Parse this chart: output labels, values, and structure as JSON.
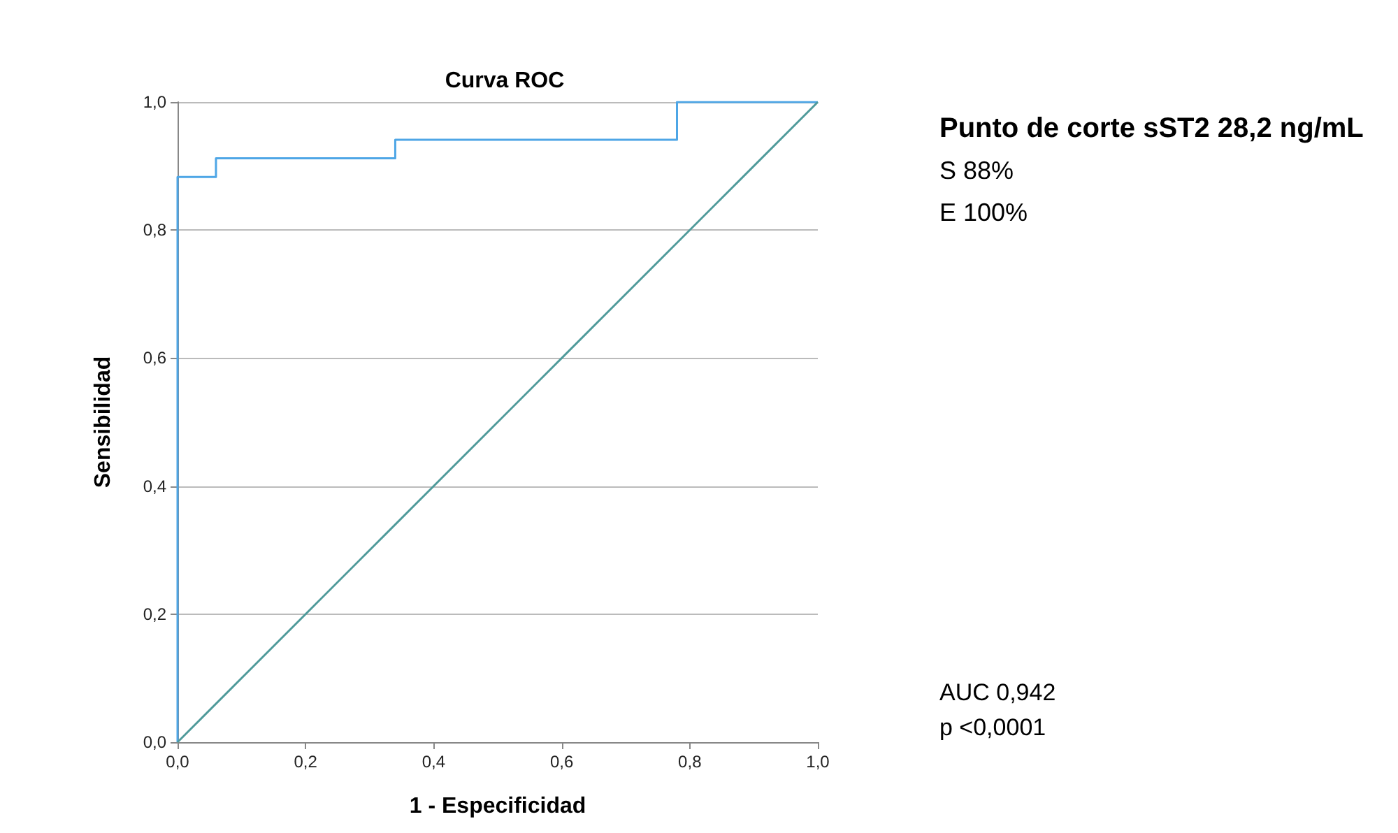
{
  "chart_data": {
    "type": "line",
    "title": "Curva ROC",
    "xlabel": "1 - Especificidad",
    "ylabel": "Sensibilidad",
    "series": [
      {
        "type": "step",
        "color": "#4ea6e6",
        "x": [
          0,
          0,
          0.06,
          0.34,
          0.78,
          1
        ],
        "values": [
          0,
          0.883,
          0.912,
          0.941,
          1,
          1
        ]
      },
      {
        "color": "#4f9a9a",
        "x": [
          0,
          1
        ],
        "values": [
          0,
          1
        ]
      }
    ],
    "xlim": [
      0,
      1
    ],
    "ylim": [
      0,
      1
    ],
    "xticks": [
      {
        "value": 0,
        "label": "0,0"
      },
      {
        "value": 0.2,
        "label": "0,2"
      },
      {
        "value": 0.4,
        "label": "0,4"
      },
      {
        "value": 0.6,
        "label": "0,6"
      },
      {
        "value": 0.8,
        "label": "0,8"
      },
      {
        "value": 1,
        "label": "1,0"
      }
    ],
    "yticks": [
      {
        "value": 0,
        "label": "0,0"
      },
      {
        "value": 0.2,
        "label": "0,2"
      },
      {
        "value": 0.4,
        "label": "0,4"
      },
      {
        "value": 0.6,
        "label": "0,6"
      },
      {
        "value": 0.8,
        "label": "0,8"
      },
      {
        "value": 1,
        "label": "1,0"
      }
    ],
    "grid": "y",
    "marker": "none",
    "line_style": "solid",
    "annotations": [
      "Punto de corte sST2 28,2 ng/mL",
      "S 88%",
      "E 100%",
      "AUC 0,942",
      "p <0,0001"
    ]
  }
}
